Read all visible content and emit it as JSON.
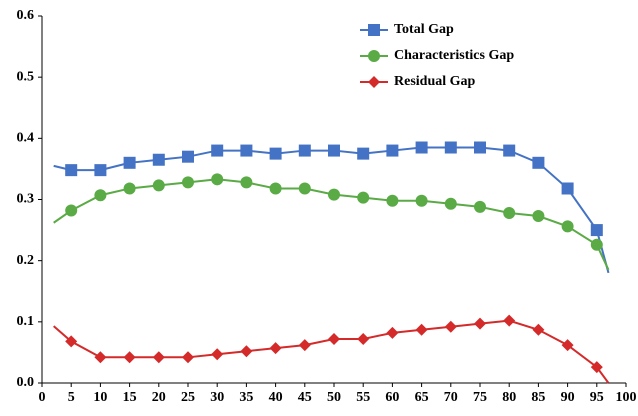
{
  "chart_data": {
    "type": "line",
    "x": [
      2,
      5,
      10,
      15,
      20,
      25,
      30,
      35,
      40,
      45,
      50,
      55,
      60,
      65,
      70,
      75,
      80,
      85,
      90,
      95,
      97
    ],
    "series": [
      {
        "name": "Total Gap",
        "color": "#4472c4",
        "marker": "square",
        "values": [
          0.355,
          0.348,
          0.348,
          0.36,
          0.365,
          0.37,
          0.38,
          0.38,
          0.375,
          0.38,
          0.38,
          0.375,
          0.38,
          0.385,
          0.385,
          0.385,
          0.38,
          0.36,
          0.318,
          0.25,
          0.18
        ]
      },
      {
        "name": "Characteristics Gap",
        "color": "#5aaa46",
        "marker": "circle",
        "values": [
          0.262,
          0.282,
          0.307,
          0.318,
          0.323,
          0.328,
          0.333,
          0.328,
          0.318,
          0.318,
          0.308,
          0.303,
          0.298,
          0.298,
          0.293,
          0.288,
          0.278,
          0.273,
          0.256,
          0.226,
          0.185
        ]
      },
      {
        "name": "Residual Gap",
        "color": "#d42a2a",
        "marker": "diamond",
        "values": [
          0.093,
          0.068,
          0.042,
          0.042,
          0.042,
          0.042,
          0.047,
          0.052,
          0.057,
          0.062,
          0.072,
          0.072,
          0.082,
          0.087,
          0.092,
          0.097,
          0.102,
          0.087,
          0.062,
          0.026,
          0.0
        ]
      }
    ],
    "xlim": [
      0,
      100
    ],
    "xticks": [
      0,
      5,
      10,
      15,
      20,
      25,
      30,
      35,
      40,
      45,
      50,
      55,
      60,
      65,
      70,
      75,
      80,
      85,
      90,
      95,
      100
    ],
    "ylim": [
      0,
      0.6
    ],
    "yticks": [
      {
        "value": 0,
        "label": "0.0"
      },
      0.1,
      0.2,
      0.3,
      0.4,
      0.5,
      0.6
    ],
    "grid": false,
    "legend": "top"
  }
}
